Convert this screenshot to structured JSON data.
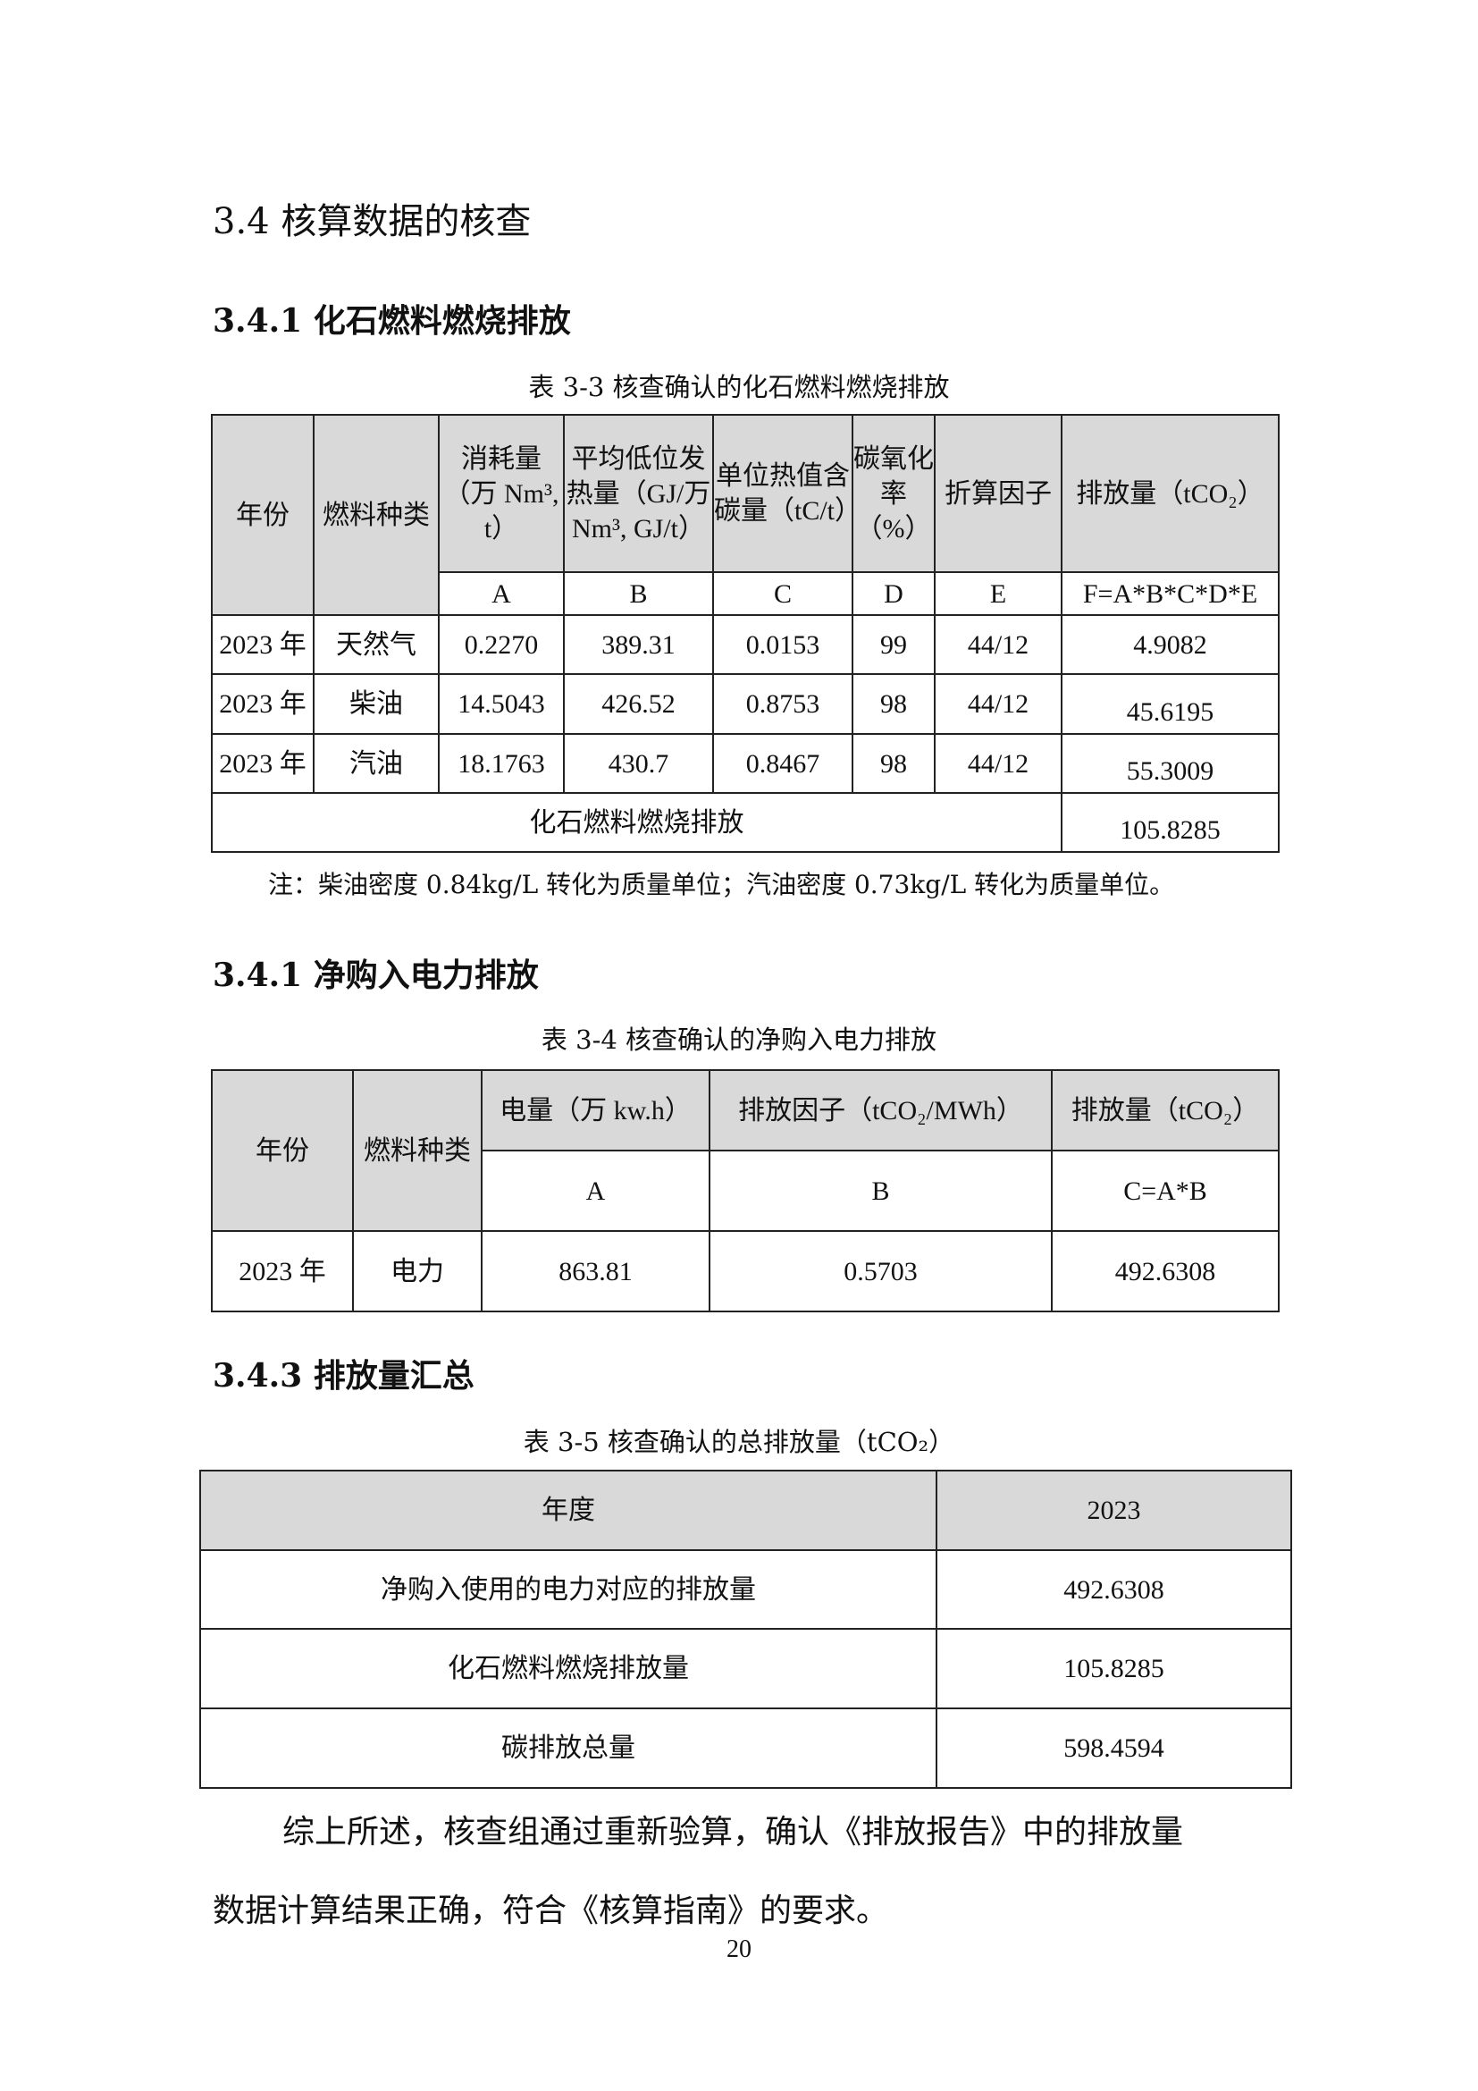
{
  "section_heading": "3.4  核算数据的核查",
  "sub1": {
    "heading": "3.4.1  化石燃料燃烧排放",
    "caption": "表 3-3  核查确认的化石燃料燃烧排放",
    "headers": [
      "年份",
      "燃料种类",
      "消耗量（万 Nm³, t）",
      "平均低位发热量（GJ/万 Nm³, GJ/t）",
      "单位热值含碳量（tC/t）",
      "碳氧化率（%）",
      "折算因子",
      "排放量（tCO₂）"
    ],
    "letters": [
      "A",
      "B",
      "C",
      "D",
      "E",
      "F=A*B*C*D*E"
    ],
    "rows": [
      [
        "2023 年",
        "天然气",
        "0.2270",
        "389.31",
        "0.0153",
        "99",
        "44/12",
        "4.9082"
      ],
      [
        "2023 年",
        "柴油",
        "14.5043",
        "426.52",
        "0.8753",
        "98",
        "44/12",
        "45.6195"
      ],
      [
        "2023 年",
        "汽油",
        "18.1763",
        "430.7",
        "0.8467",
        "98",
        "44/12",
        "55.3009"
      ]
    ],
    "total_label": "化石燃料燃烧排放",
    "total_value": "105.8285",
    "note": "注：柴油密度 0.84kg/L 转化为质量单位；汽油密度 0.73kg/L 转化为质量单位。"
  },
  "sub2": {
    "heading": "3.4.1  净购入电力排放",
    "caption": "表 3-4  核查确认的净购入电力排放",
    "headers": [
      "年份",
      "燃料种类",
      "电量（万 kw.h）",
      "排放因子（tCO₂/MWh）",
      "排放量（tCO₂）"
    ],
    "letters": [
      "A",
      "B",
      "C=A*B"
    ],
    "row": [
      "2023 年",
      "电力",
      "863.81",
      "0.5703",
      "492.6308"
    ]
  },
  "sub3": {
    "heading": "3.4.3 排放量汇总",
    "caption": "表 3-5  核查确认的总排放量（tCO₂）",
    "rows": [
      [
        "年度",
        "2023"
      ],
      [
        "净购入使用的电力对应的排放量",
        "492.6308"
      ],
      [
        "化石燃料燃烧排放量",
        "105.8285"
      ],
      [
        "碳排放总量",
        "598.4594"
      ]
    ]
  },
  "conclusion": {
    "line1": "综上所述，核查组通过重新验算，确认《排放报告》中的排放量",
    "line2": "数据计算结果正确，符合《核算指南》的要求。"
  },
  "page_number": "20"
}
